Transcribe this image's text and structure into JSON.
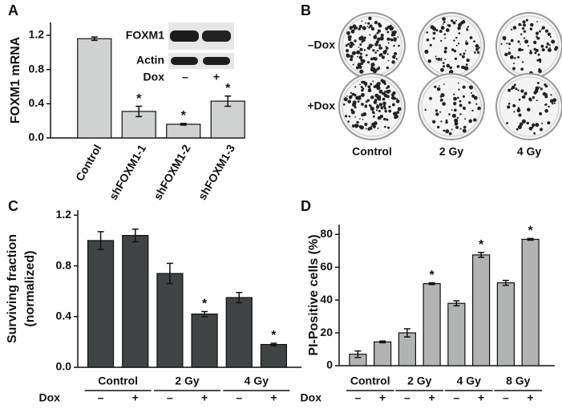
{
  "chart_data": [
    {
      "type": "bar",
      "panel": "A",
      "ylabel": "FOXM1 mRNA",
      "categories": [
        "Control",
        "shFOXM1-1",
        "shFOXM1-2",
        "shFOXM1-3"
      ],
      "values": [
        1.16,
        0.31,
        0.16,
        0.43
      ],
      "errors": [
        0.02,
        0.06,
        0.01,
        0.06
      ],
      "significance": [
        null,
        "*",
        "*",
        "*"
      ],
      "color": "#d0d2d2",
      "ylim": [
        0,
        1.35
      ],
      "yticks": [
        {
          "value": 0,
          "label": "0.0"
        },
        0.4,
        0.8,
        1.2
      ],
      "inset": {
        "bands": [
          "FOXM1",
          "Actin"
        ],
        "dox_label": "Dox",
        "dox": [
          "–",
          "+"
        ]
      }
    },
    {
      "type": "bar",
      "panel": "C",
      "ylabel": [
        "Surviving fraction",
        "(normalized)"
      ],
      "groups": [
        "Control",
        "2 Gy",
        "4 Gy"
      ],
      "dox_label": "Dox",
      "sublabels": [
        "–",
        "+",
        "–",
        "+",
        "–",
        "+"
      ],
      "values": [
        1.0,
        1.04,
        0.74,
        0.42,
        0.55,
        0.18
      ],
      "errors": [
        0.07,
        0.05,
        0.08,
        0.02,
        0.04,
        0.01
      ],
      "significance": [
        null,
        null,
        null,
        "*",
        null,
        "*"
      ],
      "color": "#404445",
      "ylim": [
        0,
        1.24
      ],
      "yticks": [
        {
          "value": 0,
          "label": "0.0"
        },
        0.4,
        0.8,
        1.2
      ]
    },
    {
      "type": "bar",
      "panel": "D",
      "ylabel": "PI-Positive cells (%)",
      "groups": [
        "Control",
        "2 Gy",
        "4 Gy",
        "8 Gy"
      ],
      "dox_label": "Dox",
      "sublabels": [
        "–",
        "+",
        "–",
        "+",
        "–",
        "+",
        "–",
        "+"
      ],
      "values": [
        7,
        14.5,
        20,
        50,
        38,
        67.5,
        50.5,
        77
      ],
      "errors": [
        2,
        0.5,
        2.5,
        0.5,
        1.5,
        1.5,
        1.5,
        0.5
      ],
      "significance": [
        null,
        null,
        null,
        "*",
        null,
        "*",
        null,
        "*"
      ],
      "color": "#b2b3b3",
      "ylim": [
        0,
        86
      ],
      "yticks": [
        0,
        20,
        40,
        60,
        80
      ]
    }
  ],
  "image_panel": {
    "panel": "B",
    "row_labels": [
      "–Dox",
      "+Dox"
    ],
    "column_labels": [
      "Control",
      "2 Gy",
      "4 Gy"
    ]
  }
}
